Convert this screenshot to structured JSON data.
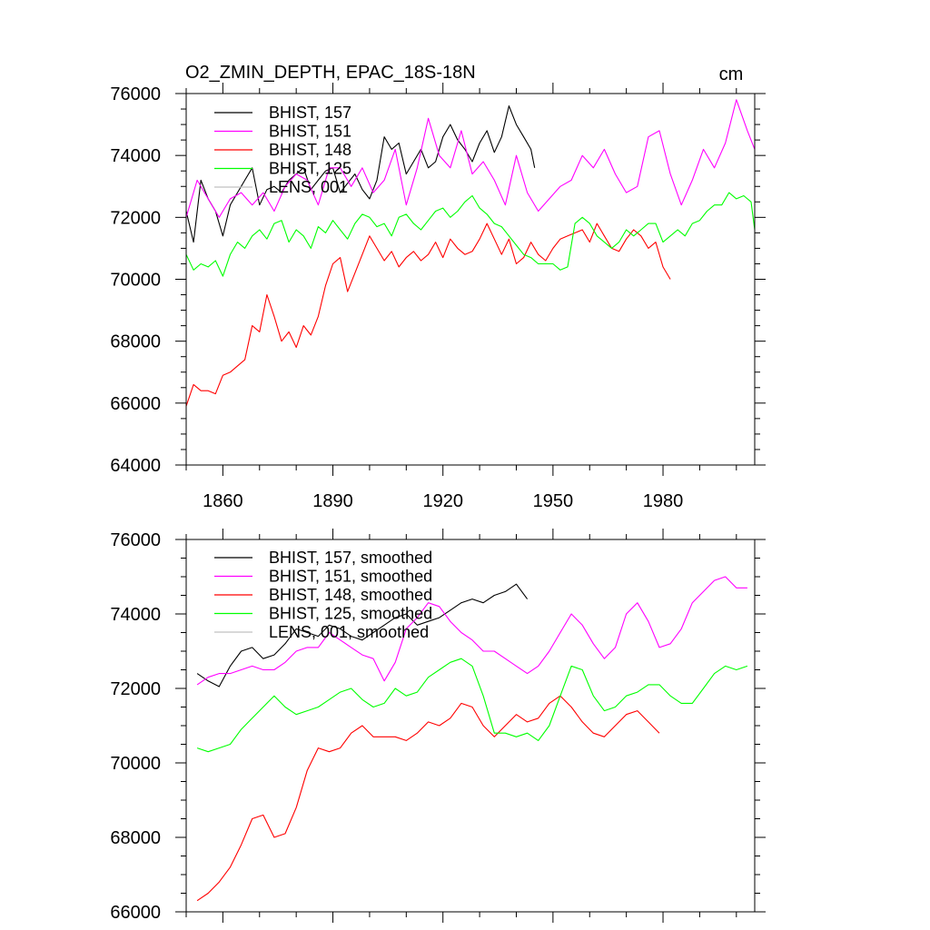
{
  "chart_data": [
    {
      "type": "line",
      "title": "O2_ZMIN_DEPTH, EPAC_18S-18N",
      "units": "cm",
      "xlim": [
        1850,
        2005
      ],
      "ylim": [
        64000,
        76000
      ],
      "xticks": [
        1860,
        1890,
        1920,
        1950,
        1980
      ],
      "xtick_labels": [
        "1860",
        "1890",
        "1920",
        "1950",
        "1980"
      ],
      "yticks": [
        64000,
        66000,
        68000,
        70000,
        72000,
        74000,
        76000
      ],
      "ytick_labels": [
        "64000",
        "66000",
        "68000",
        "70000",
        "72000",
        "74000",
        "76000"
      ],
      "legend_position": "top-left",
      "series": [
        {
          "name": "BHIST, 157",
          "color": "#000000",
          "x": [
            1850,
            1852,
            1854,
            1856,
            1858,
            1860,
            1862,
            1864,
            1866,
            1868,
            1870,
            1872,
            1874,
            1876,
            1878,
            1880,
            1882,
            1884,
            1886,
            1888,
            1890,
            1892,
            1894,
            1896,
            1898,
            1900,
            1902,
            1904,
            1906,
            1908,
            1910,
            1912,
            1914,
            1916,
            1918,
            1920,
            1922,
            1924,
            1926,
            1928,
            1930,
            1932,
            1934,
            1936,
            1938,
            1940,
            1942,
            1944,
            1945
          ],
          "y": [
            72200,
            71200,
            73200,
            72600,
            72200,
            71400,
            72400,
            72800,
            73200,
            73600,
            72400,
            72900,
            73000,
            72800,
            73200,
            73400,
            73600,
            72900,
            73200,
            73500,
            73600,
            72800,
            73100,
            73400,
            72900,
            72600,
            73200,
            74600,
            74200,
            74400,
            73400,
            73800,
            74200,
            73600,
            73800,
            74600,
            75000,
            74500,
            74200,
            73800,
            74400,
            74800,
            74100,
            74600,
            75600,
            75000,
            74600,
            74200,
            73600
          ]
        },
        {
          "name": "BHIST, 151",
          "color": "#ff00ff",
          "x": [
            1850,
            1853,
            1856,
            1859,
            1862,
            1865,
            1868,
            1871,
            1874,
            1877,
            1880,
            1883,
            1886,
            1889,
            1892,
            1895,
            1898,
            1901,
            1904,
            1907,
            1910,
            1913,
            1916,
            1919,
            1922,
            1925,
            1928,
            1931,
            1934,
            1937,
            1940,
            1943,
            1946,
            1949,
            1952,
            1955,
            1958,
            1961,
            1964,
            1967,
            1970,
            1973,
            1976,
            1979,
            1982,
            1985,
            1988,
            1991,
            1994,
            1997,
            2000,
            2003,
            2005
          ],
          "y": [
            72000,
            73200,
            72600,
            72000,
            72600,
            72800,
            72400,
            72800,
            72200,
            73000,
            73400,
            73200,
            72400,
            73600,
            73600,
            73000,
            73600,
            72800,
            73200,
            74200,
            72400,
            73600,
            75200,
            74000,
            73600,
            74800,
            73400,
            73800,
            73200,
            72400,
            74000,
            72800,
            72200,
            72600,
            73000,
            73200,
            74000,
            73600,
            74200,
            73400,
            72800,
            73000,
            74600,
            74800,
            73400,
            72400,
            73200,
            74200,
            73600,
            74400,
            75800,
            74800,
            74200
          ]
        },
        {
          "name": "BHIST, 148",
          "color": "#ff0000",
          "x": [
            1850,
            1852,
            1854,
            1856,
            1858,
            1860,
            1862,
            1864,
            1866,
            1868,
            1870,
            1872,
            1874,
            1876,
            1878,
            1880,
            1882,
            1884,
            1886,
            1888,
            1890,
            1892,
            1894,
            1896,
            1898,
            1900,
            1902,
            1904,
            1906,
            1908,
            1910,
            1912,
            1914,
            1916,
            1918,
            1920,
            1922,
            1924,
            1926,
            1928,
            1930,
            1932,
            1934,
            1936,
            1938,
            1940,
            1942,
            1944,
            1946,
            1948,
            1950,
            1952,
            1954,
            1956,
            1958,
            1960,
            1962,
            1964,
            1966,
            1968,
            1970,
            1972,
            1974,
            1976,
            1978,
            1980,
            1982
          ],
          "y": [
            65900,
            66600,
            66400,
            66400,
            66300,
            66900,
            67000,
            67200,
            67400,
            68500,
            68300,
            69500,
            68800,
            68000,
            68300,
            67800,
            68500,
            68200,
            68800,
            69800,
            70500,
            70700,
            69600,
            70200,
            70800,
            71400,
            71000,
            70600,
            70900,
            70400,
            70700,
            70900,
            70600,
            70800,
            71200,
            70700,
            71300,
            71000,
            70800,
            70900,
            71300,
            71800,
            71300,
            70800,
            71300,
            70500,
            70700,
            71200,
            70800,
            70600,
            71000,
            71300,
            71400,
            71500,
            71600,
            71200,
            71800,
            71400,
            71000,
            70900,
            71300,
            71600,
            71400,
            71000,
            71200,
            70400,
            70000
          ]
        },
        {
          "name": "BHIST, 125",
          "color": "#00ff00",
          "x": [
            1850,
            1852,
            1854,
            1856,
            1858,
            1860,
            1862,
            1864,
            1866,
            1868,
            1870,
            1872,
            1874,
            1876,
            1878,
            1880,
            1882,
            1884,
            1886,
            1888,
            1890,
            1892,
            1894,
            1896,
            1898,
            1900,
            1902,
            1904,
            1906,
            1908,
            1910,
            1912,
            1914,
            1916,
            1918,
            1920,
            1922,
            1924,
            1926,
            1928,
            1930,
            1932,
            1934,
            1936,
            1938,
            1940,
            1942,
            1944,
            1946,
            1948,
            1950,
            1952,
            1954,
            1956,
            1958,
            1960,
            1962,
            1964,
            1966,
            1968,
            1970,
            1972,
            1974,
            1976,
            1978,
            1980,
            1982,
            1984,
            1986,
            1988,
            1990,
            1992,
            1994,
            1996,
            1998,
            2000,
            2002,
            2004,
            2005
          ],
          "y": [
            70800,
            70300,
            70500,
            70400,
            70600,
            70100,
            70800,
            71200,
            71000,
            71400,
            71600,
            71300,
            71800,
            71900,
            71200,
            71600,
            71400,
            71000,
            71700,
            71500,
            71900,
            71600,
            71300,
            71800,
            72100,
            72000,
            71700,
            71800,
            71400,
            72000,
            72100,
            71800,
            71600,
            71900,
            72200,
            72300,
            72000,
            72200,
            72500,
            72700,
            72300,
            72100,
            71800,
            71700,
            71400,
            71100,
            70800,
            70700,
            70500,
            70500,
            70500,
            70300,
            70400,
            71800,
            72000,
            71800,
            71400,
            71200,
            71000,
            71200,
            71600,
            71400,
            71600,
            71800,
            71800,
            71200,
            71400,
            71600,
            71400,
            71800,
            71900,
            72200,
            72400,
            72400,
            72800,
            72600,
            72700,
            72500,
            71600
          ]
        },
        {
          "name": "LENS, 001",
          "color": "#c0c0c0",
          "x": [],
          "y": []
        }
      ]
    },
    {
      "type": "line",
      "xlim": [
        1850,
        2005
      ],
      "ylim": [
        66000,
        76000
      ],
      "yticks": [
        66000,
        68000,
        70000,
        72000,
        74000,
        76000
      ],
      "ytick_labels": [
        "66000",
        "68000",
        "70000",
        "72000",
        "74000",
        "76000"
      ],
      "legend_position": "top-left",
      "series": [
        {
          "name": "BHIST, 157, smoothed",
          "color": "#000000",
          "x": [
            1853,
            1856,
            1859,
            1862,
            1865,
            1868,
            1871,
            1874,
            1877,
            1880,
            1883,
            1886,
            1889,
            1892,
            1895,
            1898,
            1901,
            1904,
            1907,
            1910,
            1913,
            1916,
            1919,
            1922,
            1925,
            1928,
            1931,
            1934,
            1937,
            1940,
            1943
          ],
          "y": [
            72400,
            72200,
            72050,
            72600,
            73000,
            73100,
            72800,
            72900,
            73200,
            73600,
            73500,
            73400,
            73700,
            73600,
            73400,
            73300,
            73500,
            73700,
            73900,
            74000,
            73700,
            73800,
            73900,
            74100,
            74300,
            74400,
            74300,
            74500,
            74600,
            74800,
            74400
          ]
        },
        {
          "name": "BHIST, 151, smoothed",
          "color": "#ff00ff",
          "x": [
            1853,
            1856,
            1859,
            1862,
            1865,
            1868,
            1871,
            1874,
            1877,
            1880,
            1883,
            1886,
            1889,
            1892,
            1895,
            1898,
            1901,
            1904,
            1907,
            1910,
            1913,
            1916,
            1919,
            1922,
            1925,
            1928,
            1931,
            1934,
            1937,
            1940,
            1943,
            1946,
            1949,
            1952,
            1955,
            1958,
            1961,
            1964,
            1967,
            1970,
            1973,
            1976,
            1979,
            1982,
            1985,
            1988,
            1991,
            1994,
            1997,
            2000,
            2003
          ],
          "y": [
            72100,
            72300,
            72400,
            72400,
            72500,
            72600,
            72500,
            72500,
            72700,
            73000,
            73100,
            73100,
            73500,
            73300,
            73100,
            72900,
            72800,
            72200,
            72700,
            73600,
            73900,
            74300,
            74200,
            73800,
            73500,
            73300,
            73000,
            73000,
            72800,
            72600,
            72400,
            72600,
            73000,
            73500,
            74000,
            73700,
            73200,
            72800,
            73100,
            74000,
            74300,
            73800,
            73100,
            73200,
            73600,
            74300,
            74600,
            74900,
            75000,
            74700,
            74700
          ]
        },
        {
          "name": "BHIST, 148, smoothed",
          "color": "#ff0000",
          "x": [
            1853,
            1856,
            1859,
            1862,
            1865,
            1868,
            1871,
            1874,
            1877,
            1880,
            1883,
            1886,
            1889,
            1892,
            1895,
            1898,
            1901,
            1904,
            1907,
            1910,
            1913,
            1916,
            1919,
            1922,
            1925,
            1928,
            1931,
            1934,
            1937,
            1940,
            1943,
            1946,
            1949,
            1952,
            1955,
            1958,
            1961,
            1964,
            1967,
            1970,
            1973,
            1976,
            1979
          ],
          "y": [
            66300,
            66500,
            66800,
            67200,
            67800,
            68500,
            68600,
            68000,
            68100,
            68800,
            69800,
            70400,
            70300,
            70400,
            70800,
            71000,
            70700,
            70700,
            70700,
            70600,
            70800,
            71100,
            71000,
            71200,
            71600,
            71500,
            71000,
            70700,
            71000,
            71300,
            71100,
            71200,
            71600,
            71800,
            71500,
            71100,
            70800,
            70700,
            71000,
            71300,
            71400,
            71100,
            70800
          ]
        },
        {
          "name": "BHIST, 125, smoothed",
          "color": "#00ff00",
          "x": [
            1853,
            1856,
            1859,
            1862,
            1865,
            1868,
            1871,
            1874,
            1877,
            1880,
            1883,
            1886,
            1889,
            1892,
            1895,
            1898,
            1901,
            1904,
            1907,
            1910,
            1913,
            1916,
            1919,
            1922,
            1925,
            1928,
            1931,
            1934,
            1937,
            1940,
            1943,
            1946,
            1949,
            1952,
            1955,
            1958,
            1961,
            1964,
            1967,
            1970,
            1973,
            1976,
            1979,
            1982,
            1985,
            1988,
            1991,
            1994,
            1997,
            2000,
            2003
          ],
          "y": [
            70400,
            70300,
            70400,
            70500,
            70900,
            71200,
            71500,
            71800,
            71500,
            71300,
            71400,
            71500,
            71700,
            71900,
            72000,
            71700,
            71500,
            71600,
            72000,
            71800,
            71900,
            72300,
            72500,
            72700,
            72800,
            72600,
            71800,
            70800,
            70800,
            70700,
            70800,
            70600,
            71000,
            71800,
            72600,
            72500,
            71800,
            71400,
            71500,
            71800,
            71900,
            72100,
            72100,
            71800,
            71600,
            71600,
            72000,
            72400,
            72600,
            72500,
            72600
          ]
        },
        {
          "name": "LENS, 001, smoothed",
          "color": "#c0c0c0",
          "x": [],
          "y": []
        }
      ]
    }
  ]
}
